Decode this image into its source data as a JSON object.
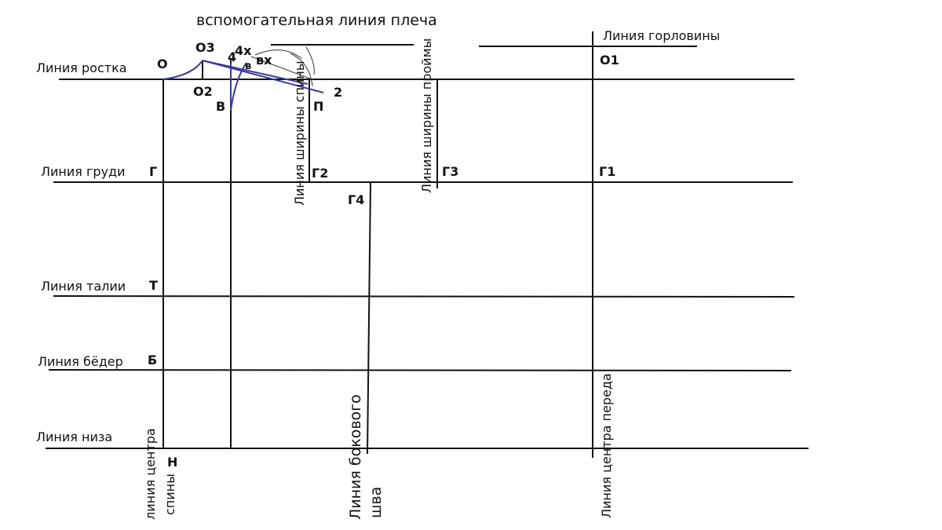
{
  "aux_shoulder_line": "вспомогательная линия плеча",
  "neckline": "Линия горловины",
  "horizontal_lines": {
    "growth": "Линия ростка",
    "chest": "Линия груди",
    "waist": "Линия талии",
    "hips": "Линия бёдер",
    "hem": "Линия низа"
  },
  "points": {
    "O": "О",
    "O3": "О3",
    "p4": "4",
    "p4x": "4х",
    "v": "в",
    "vx": "вх",
    "O2": "О2",
    "V": "В",
    "P": "П",
    "p2": "2",
    "O1": "О1",
    "G": "Г",
    "G2": "Г2",
    "G3": "Г3",
    "G1": "Г1",
    "G4": "Г4",
    "T": "Т",
    "B": "Б",
    "N": "Н"
  },
  "vertical_lines": {
    "back_width": "Линия ширины спины",
    "armhole_width": "Линия ширины проймы",
    "back_center": [
      "линия центра",
      "спины"
    ],
    "side_seam": [
      "Линия бокового",
      "шва"
    ],
    "front_center": "Линия центра переда"
  }
}
